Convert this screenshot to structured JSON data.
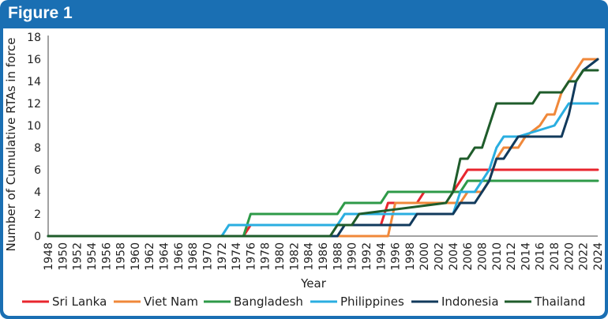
{
  "header": {
    "title": "Figure 1"
  },
  "chart_data": {
    "type": "line",
    "title": "",
    "xlabel": "Year",
    "ylabel": "Number of Cumulative RTAs in force",
    "ylim": [
      0,
      18
    ],
    "yticks": [
      0,
      2,
      4,
      6,
      8,
      10,
      12,
      14,
      16,
      18
    ],
    "xlim": [
      1948,
      2024
    ],
    "xticks": [
      1948,
      1950,
      1952,
      1954,
      1956,
      1958,
      1960,
      1962,
      1964,
      1966,
      1968,
      1970,
      1972,
      1974,
      1976,
      1978,
      1980,
      1982,
      1984,
      1986,
      1988,
      1990,
      1992,
      1994,
      1996,
      1998,
      2000,
      2002,
      2004,
      2006,
      2008,
      2010,
      2012,
      2014,
      2016,
      2018,
      2020,
      2022,
      2024
    ],
    "grid": false,
    "legend_position": "bottom",
    "series": [
      {
        "name": "Sri Lanka",
        "color": "#e8262e",
        "x": [
          1948,
          1975,
          1976,
          1994,
          1995,
          1999,
          2000,
          2004,
          2005,
          2006,
          2024
        ],
        "y": [
          0,
          0,
          1,
          1,
          3,
          3,
          4,
          4,
          5,
          6,
          6
        ]
      },
      {
        "name": "Viet Nam",
        "color": "#f0883a",
        "x": [
          1948,
          1995,
          1996,
          2005,
          2006,
          2008,
          2009,
          2010,
          2011,
          2013,
          2014,
          2016,
          2017,
          2018,
          2019,
          2020,
          2021,
          2022,
          2024
        ],
        "y": [
          0,
          0,
          3,
          3,
          4,
          4,
          5,
          7,
          8,
          8,
          9,
          10,
          11,
          11,
          13,
          14,
          15,
          16,
          16
        ]
      },
      {
        "name": "Bangladesh",
        "color": "#2e9a48",
        "x": [
          1948,
          1975,
          1976,
          1988,
          1989,
          1994,
          1995,
          2005,
          2006,
          2024
        ],
        "y": [
          0,
          0,
          2,
          2,
          3,
          3,
          4,
          4,
          5,
          5
        ]
      },
      {
        "name": "Philippines",
        "color": "#2aaee0",
        "x": [
          1948,
          1972,
          1973,
          1988,
          1989,
          2004,
          2005,
          2007,
          2008,
          2009,
          2010,
          2011,
          2012,
          2013,
          2018,
          2019,
          2020,
          2021,
          2022,
          2024
        ],
        "y": [
          0,
          0,
          1,
          1,
          2,
          2,
          4,
          4,
          5,
          6,
          8,
          9,
          9,
          9,
          10,
          11,
          12,
          12,
          12,
          12
        ]
      },
      {
        "name": "Indonesia",
        "color": "#113a5c",
        "x": [
          1948,
          1988,
          1989,
          1998,
          1999,
          2004,
          2005,
          2007,
          2008,
          2009,
          2010,
          2011,
          2012,
          2013,
          2019,
          2020,
          2021,
          2022,
          2024
        ],
        "y": [
          0,
          0,
          1,
          1,
          2,
          2,
          3,
          3,
          4,
          5,
          7,
          7,
          8,
          9,
          9,
          11,
          14,
          15,
          16
        ]
      },
      {
        "name": "Thailand",
        "color": "#1f5c2b",
        "x": [
          1948,
          1987,
          1988,
          1990,
          1991,
          2003,
          2004,
          2005,
          2006,
          2007,
          2008,
          2009,
          2010,
          2015,
          2016,
          2019,
          2020,
          2021,
          2022,
          2024
        ],
        "y": [
          0,
          0,
          1,
          1,
          2,
          3,
          4,
          7,
          7,
          8,
          8,
          10,
          12,
          12,
          13,
          13,
          14,
          14,
          15,
          15
        ]
      }
    ]
  }
}
